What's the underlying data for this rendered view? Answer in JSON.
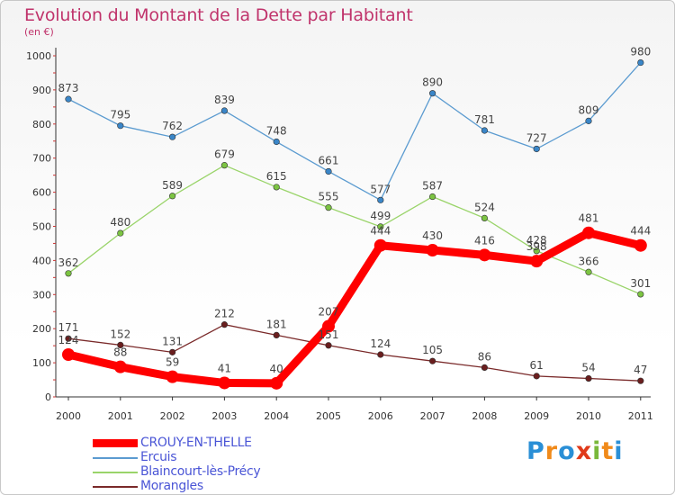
{
  "title": "Evolution du Montant de la Dette par Habitant",
  "subtitle": "(en €)",
  "brand": {
    "letters": [
      "P",
      "r",
      "o",
      "x",
      "i",
      "t",
      "i"
    ],
    "colors": [
      "#2a8fd6",
      "#f08a1a",
      "#2a8fd6",
      "#e03a1a",
      "#7ab83a",
      "#f08a1a",
      "#2a8fd6"
    ]
  },
  "chart_data": {
    "type": "line",
    "title": "Evolution du Montant de la Dette par Habitant",
    "ylabel": "(en €)",
    "xlabel": "",
    "x": [
      "2000",
      "2001",
      "2002",
      "2003",
      "2004",
      "2005",
      "2006",
      "2007",
      "2008",
      "2009",
      "2010",
      "2011"
    ],
    "ylim": [
      0,
      1000
    ],
    "yticks": [
      "0",
      "100",
      "200",
      "300",
      "400",
      "500",
      "600",
      "700",
      "800",
      "900",
      "1000"
    ],
    "grid": false,
    "legend": "bottom-left",
    "series": [
      {
        "name": "Ercuis",
        "color": "#5b9bd0",
        "point_color": "#3a86c8",
        "values": [
          873,
          795,
          762,
          839,
          748,
          661,
          577,
          890,
          781,
          727,
          809,
          980
        ]
      },
      {
        "name": "Blaincourt-lès-Précy",
        "color": "#9ad46a",
        "point_color": "#7cc442",
        "values": [
          362,
          480,
          589,
          679,
          615,
          555,
          499,
          587,
          524,
          428,
          366,
          301
        ]
      },
      {
        "name": "Morangles",
        "color": "#7a2a2a",
        "point_color": "#6a1e1e",
        "values": [
          171,
          152,
          131,
          212,
          181,
          151,
          124,
          105,
          86,
          61,
          54,
          47
        ]
      },
      {
        "name": "CROUY-EN-THELLE",
        "color": "#ff0000",
        "point_color": "#ff0000",
        "values": [
          124,
          88,
          59,
          41,
          40,
          207,
          444,
          430,
          416,
          398,
          481,
          444
        ]
      }
    ],
    "data_labels": [
      [
        "873",
        "795",
        "762",
        "839",
        "748",
        "661",
        "577",
        "890",
        "781",
        "727",
        "809",
        "980"
      ],
      [
        "362",
        "480",
        "589",
        "679",
        "615",
        "555",
        "499",
        "587",
        "524",
        "428",
        "366",
        "301"
      ],
      [
        "171",
        "152",
        "131",
        "212",
        "181",
        "151",
        "124",
        "105",
        "86",
        "61",
        "54",
        "47"
      ],
      [
        "124",
        "88",
        "59",
        "41",
        "40",
        "207",
        "444",
        "430",
        "416",
        "398",
        "481",
        "444"
      ]
    ],
    "legend_entries": [
      "CROUY-EN-THELLE",
      "Ercuis",
      "Blaincourt-lès-Précy",
      "Morangles"
    ]
  }
}
